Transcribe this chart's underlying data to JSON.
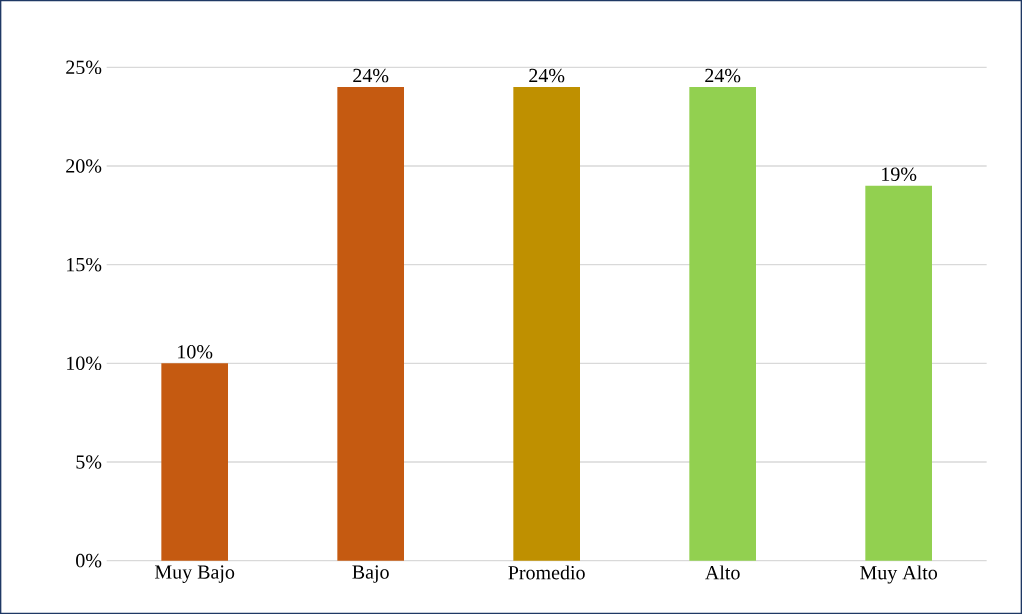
{
  "chart_data": {
    "type": "bar",
    "categories": [
      "Muy Bajo",
      "Bajo",
      "Promedio",
      "Alto",
      "Muy Alto"
    ],
    "values": [
      10,
      24,
      24,
      24,
      19
    ],
    "colors": [
      "#c55a11",
      "#c55a11",
      "#bf9000",
      "#92d050",
      "#92d050"
    ],
    "value_labels": [
      "10%",
      "24%",
      "24%",
      "24%",
      "19%"
    ],
    "ylim": [
      0,
      25
    ],
    "yticks": [
      {
        "value": 0,
        "label": "0%"
      },
      {
        "value": 5,
        "label": "5%"
      },
      {
        "value": 10,
        "label": "10%"
      },
      {
        "value": 15,
        "label": "15%"
      },
      {
        "value": 20,
        "label": "20%"
      },
      {
        "value": 25,
        "label": "25%"
      }
    ],
    "grid": "y"
  }
}
